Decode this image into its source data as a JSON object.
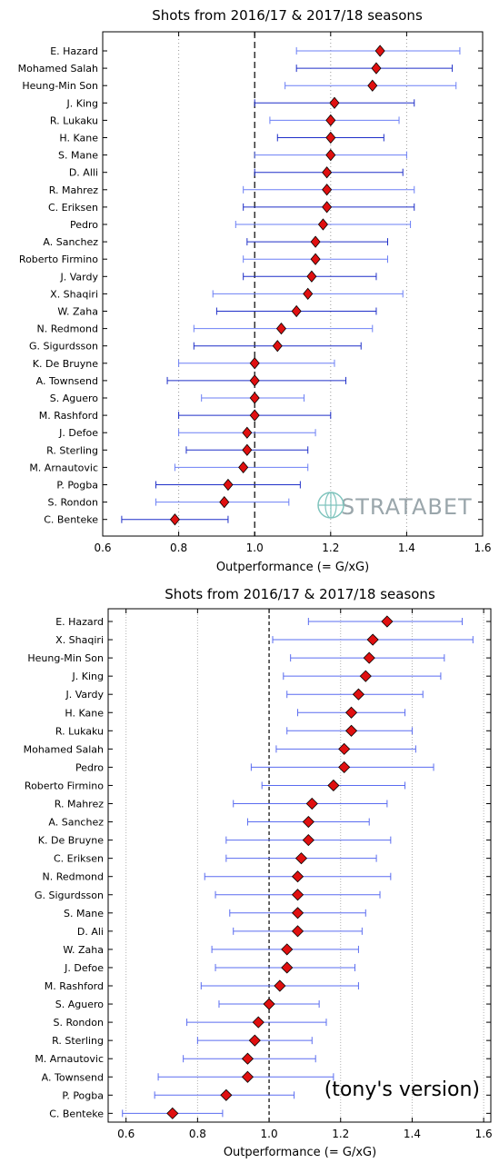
{
  "chart_data": [
    {
      "type": "errorbar",
      "title": "Shots from 2016/17 & 2017/18 seasons",
      "xlabel": "Outperformance (= G/xG)",
      "xlim": [
        0.6,
        1.6
      ],
      "xticks": [
        "0.6",
        "0.8",
        "1.0",
        "1.2",
        "1.4",
        "1.6"
      ],
      "vline": 1.0,
      "grid_x": [
        0.8,
        1.2,
        1.4
      ],
      "marker_color": "#e01010",
      "watermark": "STRATABET",
      "players": [
        {
          "name": "E. Hazard",
          "value": 1.33,
          "low": 1.11,
          "high": 1.54
        },
        {
          "name": "Mohamed Salah",
          "value": 1.32,
          "low": 1.11,
          "high": 1.52
        },
        {
          "name": "Heung-Min Son",
          "value": 1.31,
          "low": 1.08,
          "high": 1.53
        },
        {
          "name": "J. King",
          "value": 1.21,
          "low": 1.0,
          "high": 1.42
        },
        {
          "name": "R. Lukaku",
          "value": 1.2,
          "low": 1.04,
          "high": 1.38
        },
        {
          "name": "H. Kane",
          "value": 1.2,
          "low": 1.06,
          "high": 1.34
        },
        {
          "name": "S. Mane",
          "value": 1.2,
          "low": 1.0,
          "high": 1.4
        },
        {
          "name": "D. Alli",
          "value": 1.19,
          "low": 1.0,
          "high": 1.39
        },
        {
          "name": "R. Mahrez",
          "value": 1.19,
          "low": 0.97,
          "high": 1.42
        },
        {
          "name": "C. Eriksen",
          "value": 1.19,
          "low": 0.97,
          "high": 1.42
        },
        {
          "name": "Pedro",
          "value": 1.18,
          "low": 0.95,
          "high": 1.41
        },
        {
          "name": "A. Sanchez",
          "value": 1.16,
          "low": 0.98,
          "high": 1.35
        },
        {
          "name": "Roberto Firmino",
          "value": 1.16,
          "low": 0.97,
          "high": 1.35
        },
        {
          "name": "J. Vardy",
          "value": 1.15,
          "low": 0.97,
          "high": 1.32
        },
        {
          "name": "X. Shaqiri",
          "value": 1.14,
          "low": 0.89,
          "high": 1.39
        },
        {
          "name": "W. Zaha",
          "value": 1.11,
          "low": 0.9,
          "high": 1.32
        },
        {
          "name": "N. Redmond",
          "value": 1.07,
          "low": 0.84,
          "high": 1.31
        },
        {
          "name": "G. Sigurdsson",
          "value": 1.06,
          "low": 0.84,
          "high": 1.28
        },
        {
          "name": "K. De Bruyne",
          "value": 1.0,
          "low": 0.8,
          "high": 1.21
        },
        {
          "name": "A. Townsend",
          "value": 1.0,
          "low": 0.77,
          "high": 1.24
        },
        {
          "name": "S. Aguero",
          "value": 1.0,
          "low": 0.86,
          "high": 1.13
        },
        {
          "name": "M. Rashford",
          "value": 1.0,
          "low": 0.8,
          "high": 1.2
        },
        {
          "name": "J. Defoe",
          "value": 0.98,
          "low": 0.8,
          "high": 1.16
        },
        {
          "name": "R. Sterling",
          "value": 0.98,
          "low": 0.82,
          "high": 1.14
        },
        {
          "name": "M. Arnautovic",
          "value": 0.97,
          "low": 0.79,
          "high": 1.14
        },
        {
          "name": "P. Pogba",
          "value": 0.93,
          "low": 0.74,
          "high": 1.12
        },
        {
          "name": "S. Rondon",
          "value": 0.92,
          "low": 0.74,
          "high": 1.09
        },
        {
          "name": "C. Benteke",
          "value": 0.79,
          "low": 0.65,
          "high": 0.93
        }
      ]
    },
    {
      "type": "errorbar",
      "title": "Shots from 2016/17 & 2017/18 seasons",
      "xlabel": "Outperformance (= G/xG)",
      "xlim": [
        0.55,
        1.62
      ],
      "xticks": [
        "0.6",
        "0.8",
        "1.0",
        "1.2",
        "1.4",
        "1.6"
      ],
      "vline": 1.0,
      "grid_x": [
        0.6,
        0.8,
        1.2,
        1.4,
        1.6
      ],
      "marker_color": "#e01010",
      "annotation": "(tony's version)",
      "players": [
        {
          "name": "E. Hazard",
          "value": 1.33,
          "low": 1.11,
          "high": 1.54
        },
        {
          "name": "X. Shaqiri",
          "value": 1.29,
          "low": 1.01,
          "high": 1.57
        },
        {
          "name": "Heung-Min Son",
          "value": 1.28,
          "low": 1.06,
          "high": 1.49
        },
        {
          "name": "J. King",
          "value": 1.27,
          "low": 1.04,
          "high": 1.48
        },
        {
          "name": "J. Vardy",
          "value": 1.25,
          "low": 1.05,
          "high": 1.43
        },
        {
          "name": "H. Kane",
          "value": 1.23,
          "low": 1.08,
          "high": 1.38
        },
        {
          "name": "R. Lukaku",
          "value": 1.23,
          "low": 1.05,
          "high": 1.4
        },
        {
          "name": "Mohamed Salah",
          "value": 1.21,
          "low": 1.02,
          "high": 1.41
        },
        {
          "name": "Pedro",
          "value": 1.21,
          "low": 0.95,
          "high": 1.46
        },
        {
          "name": "Roberto Firmino",
          "value": 1.18,
          "low": 0.98,
          "high": 1.38
        },
        {
          "name": "R. Mahrez",
          "value": 1.12,
          "low": 0.9,
          "high": 1.33
        },
        {
          "name": "A. Sanchez",
          "value": 1.11,
          "low": 0.94,
          "high": 1.28
        },
        {
          "name": "K. De Bruyne",
          "value": 1.11,
          "low": 0.88,
          "high": 1.34
        },
        {
          "name": "C. Eriksen",
          "value": 1.09,
          "low": 0.88,
          "high": 1.3
        },
        {
          "name": "N. Redmond",
          "value": 1.08,
          "low": 0.82,
          "high": 1.34
        },
        {
          "name": "G. Sigurdsson",
          "value": 1.08,
          "low": 0.85,
          "high": 1.31
        },
        {
          "name": "S. Mane",
          "value": 1.08,
          "low": 0.89,
          "high": 1.27
        },
        {
          "name": "D. Ali",
          "value": 1.08,
          "low": 0.9,
          "high": 1.26
        },
        {
          "name": "W. Zaha",
          "value": 1.05,
          "low": 0.84,
          "high": 1.25
        },
        {
          "name": "J. Defoe",
          "value": 1.05,
          "low": 0.85,
          "high": 1.24
        },
        {
          "name": "M. Rashford",
          "value": 1.03,
          "low": 0.81,
          "high": 1.25
        },
        {
          "name": "S. Aguero",
          "value": 1.0,
          "low": 0.86,
          "high": 1.14
        },
        {
          "name": "S. Rondon",
          "value": 0.97,
          "low": 0.77,
          "high": 1.16
        },
        {
          "name": "R. Sterling",
          "value": 0.96,
          "low": 0.8,
          "high": 1.12
        },
        {
          "name": "M. Arnautovic",
          "value": 0.94,
          "low": 0.76,
          "high": 1.13
        },
        {
          "name": "A. Townsend",
          "value": 0.94,
          "low": 0.69,
          "high": 1.18
        },
        {
          "name": "P. Pogba",
          "value": 0.88,
          "low": 0.68,
          "high": 1.07
        },
        {
          "name": "C. Benteke",
          "value": 0.73,
          "low": 0.59,
          "high": 0.87
        }
      ]
    }
  ]
}
